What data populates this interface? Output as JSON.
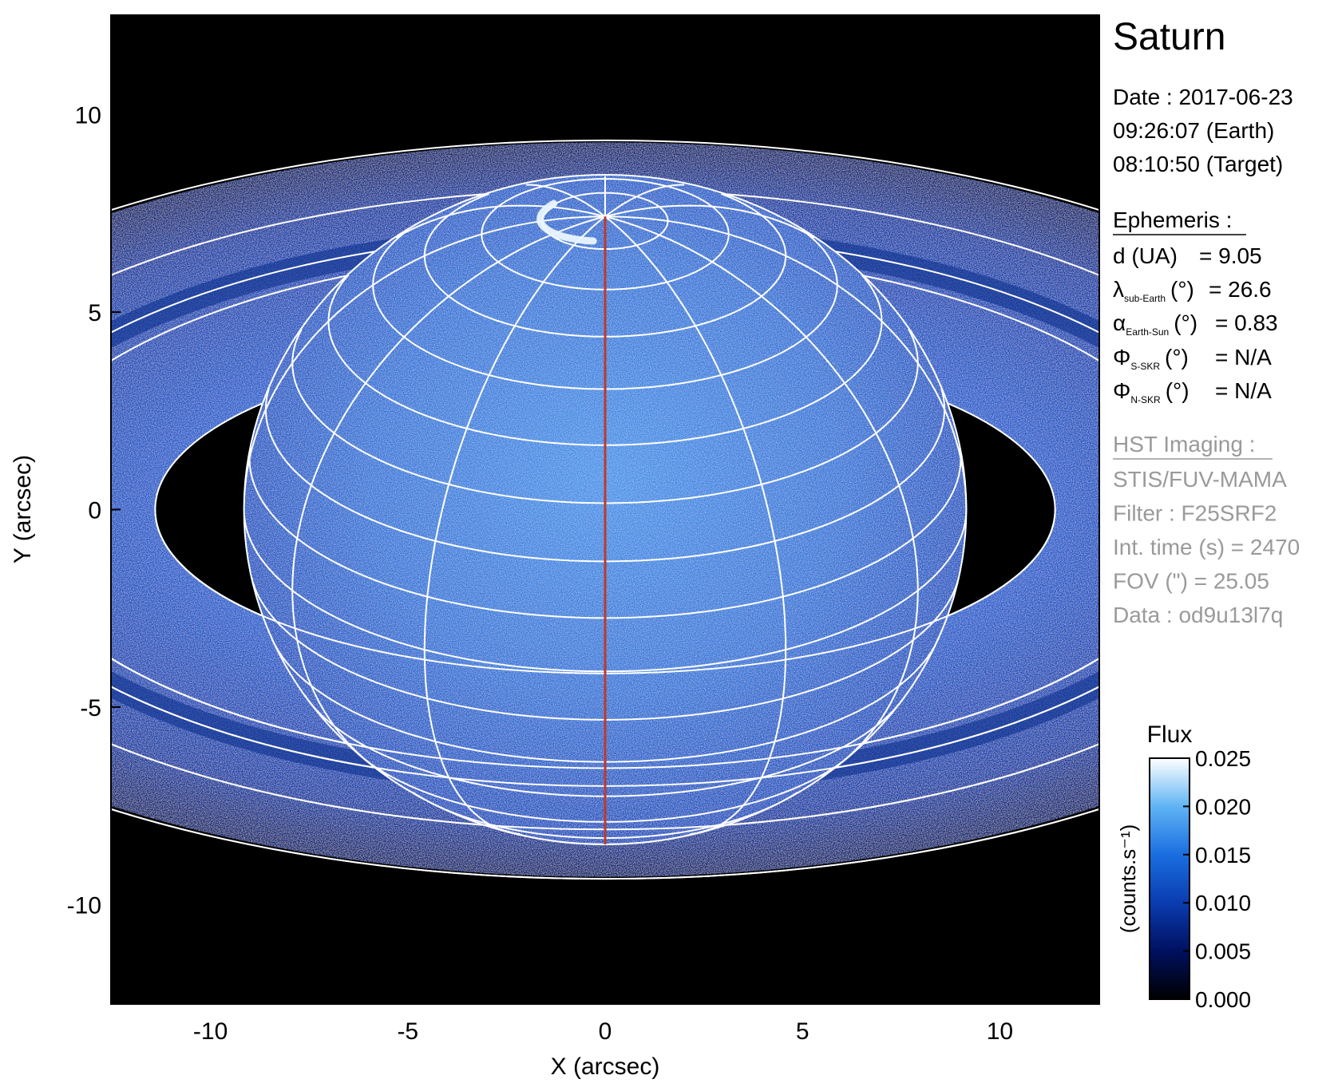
{
  "chart_data": {
    "type": "image",
    "title": "Saturn",
    "xlabel": "X (arcsec)",
    "ylabel": "Y (arcsec)",
    "xlim": [
      -12.52,
      12.52
    ],
    "ylim": [
      -12.52,
      12.52
    ],
    "xticks": [
      -10,
      -5,
      0,
      5,
      10
    ],
    "yticks": [
      -10,
      -5,
      0,
      5,
      10
    ],
    "colorbar": {
      "title": "Flux",
      "units": "(counts.s⁻¹)",
      "lim": [
        0,
        0.025
      ],
      "ticks": [
        {
          "value": 0,
          "label": "0.000"
        },
        {
          "value": 0.005,
          "label": "0.005"
        },
        {
          "value": 0.01,
          "label": "0.010"
        },
        {
          "value": 0.015,
          "label": "0.015"
        },
        {
          "value": 0.02,
          "label": "0.020"
        },
        {
          "value": 0.025,
          "label": "0.025"
        }
      ]
    },
    "info": {
      "date": "Date : 2017-06-23",
      "earth_time": "09:26:07 (Earth)",
      "target_time": "08:10:50 (Target)",
      "ephemeris_title": "Ephemeris :",
      "ephemeris": [
        {
          "label": "d (UA)",
          "value": "= 9.05"
        },
        {
          "symbol": "λ",
          "sub": "sub-Earth",
          "label": "(°)",
          "value": "= 26.6"
        },
        {
          "symbol": "α",
          "sub": "Earth-Sun",
          "label": "(°)",
          "value": "= 0.83"
        },
        {
          "symbol": "Φ",
          "sub": "S-SKR",
          "label": "(°)",
          "value": "= N/A"
        },
        {
          "symbol": "Φ",
          "sub": "N-SKR",
          "label": "(°)",
          "value": "= N/A"
        }
      ],
      "imaging_title": "HST Imaging :",
      "imaging": [
        "STIS/FUV-MAMA",
        "Filter : F25SRF2",
        "Int. time (s) = 2470",
        "FOV (\") = 25.05",
        "Data : od9u13l7q"
      ]
    }
  }
}
